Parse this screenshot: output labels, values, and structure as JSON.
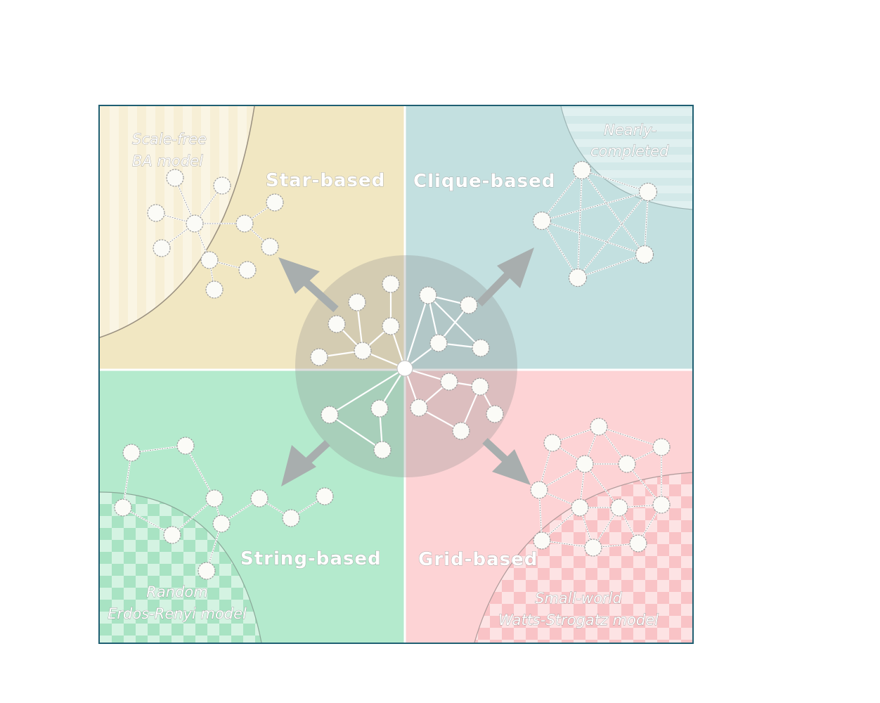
{
  "quadrants": {
    "top_left": {
      "label": "Star-based",
      "color": "#f1e7c2"
    },
    "top_right": {
      "label": "Clique-based",
      "color": "#c3e0e0"
    },
    "bottom_left": {
      "label": "String-based",
      "color": "#b4eacd"
    },
    "bottom_right": {
      "label": "Grid-based",
      "color": "#fdd3d5"
    }
  },
  "regions": {
    "scale_free": {
      "line1": "Scale-free",
      "line2": "BA model"
    },
    "nearly": {
      "line1": "Nearly-",
      "line2": "completed"
    },
    "random": {
      "line1": "Random",
      "line2": "Erdos-Renyi model"
    },
    "small_world": {
      "line1": "Small-world",
      "line2": "Watts-Strogatz model"
    }
  },
  "colors": {
    "frame": "#1f5f72",
    "divider": "#ffffff",
    "center_circle": "#8a8a8a",
    "arrow": "#a8aeae"
  }
}
